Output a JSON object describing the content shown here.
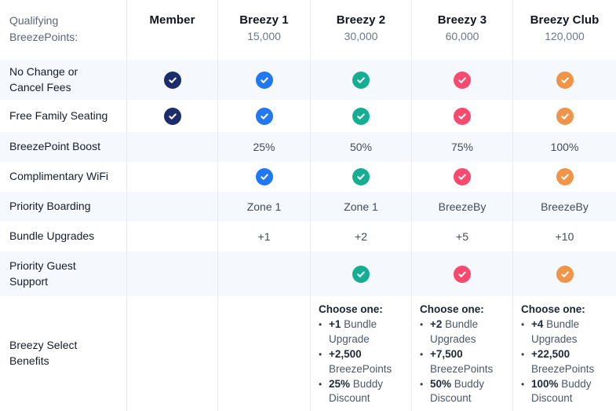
{
  "table": {
    "bullet": "•",
    "header": {
      "qualifier_label": "Qualifying BreezePoints:",
      "columns": [
        {
          "name": "Member",
          "points": ""
        },
        {
          "name": "Breezy 1",
          "points": "15,000"
        },
        {
          "name": "Breezy 2",
          "points": "30,000"
        },
        {
          "name": "Breezy 3",
          "points": "60,000"
        },
        {
          "name": "Breezy Club",
          "points": "120,000"
        }
      ]
    },
    "rows": [
      {
        "label": "No Change or Cancel Fees",
        "cells": [
          {
            "type": "check",
            "color": "navy"
          },
          {
            "type": "check",
            "color": "blue"
          },
          {
            "type": "check",
            "color": "teal"
          },
          {
            "type": "check",
            "color": "pink"
          },
          {
            "type": "check",
            "color": "orange"
          }
        ]
      },
      {
        "label": "Free Family Seating",
        "cells": [
          {
            "type": "check",
            "color": "navy"
          },
          {
            "type": "check",
            "color": "blue"
          },
          {
            "type": "check",
            "color": "teal"
          },
          {
            "type": "check",
            "color": "pink"
          },
          {
            "type": "check",
            "color": "orange"
          }
        ]
      },
      {
        "label": "BreezePoint Boost",
        "cells": [
          {
            "type": "empty"
          },
          {
            "type": "text",
            "value": "25%"
          },
          {
            "type": "text",
            "value": "50%"
          },
          {
            "type": "text",
            "value": "75%"
          },
          {
            "type": "text",
            "value": "100%"
          }
        ]
      },
      {
        "label": "Complimentary WiFi",
        "cells": [
          {
            "type": "empty"
          },
          {
            "type": "check",
            "color": "blue"
          },
          {
            "type": "check",
            "color": "teal"
          },
          {
            "type": "check",
            "color": "pink"
          },
          {
            "type": "check",
            "color": "orange"
          }
        ]
      },
      {
        "label": "Priority Boarding",
        "cells": [
          {
            "type": "empty"
          },
          {
            "type": "text",
            "value": "Zone 1"
          },
          {
            "type": "text",
            "value": "Zone 1"
          },
          {
            "type": "text",
            "value": "BreezeBy"
          },
          {
            "type": "text",
            "value": "BreezeBy"
          }
        ]
      },
      {
        "label": "Bundle Upgrades",
        "cells": [
          {
            "type": "empty"
          },
          {
            "type": "text",
            "value": "+1"
          },
          {
            "type": "text",
            "value": "+2"
          },
          {
            "type": "text",
            "value": "+5"
          },
          {
            "type": "text",
            "value": "+10"
          }
        ]
      },
      {
        "label": "Priority Guest Support",
        "cells": [
          {
            "type": "empty"
          },
          {
            "type": "empty"
          },
          {
            "type": "check",
            "color": "teal"
          },
          {
            "type": "check",
            "color": "pink"
          },
          {
            "type": "check",
            "color": "orange"
          }
        ]
      },
      {
        "label": "Breezy Select Benefits",
        "cells": [
          {
            "type": "empty"
          },
          {
            "type": "empty"
          },
          {
            "type": "list",
            "heading": "Choose one:",
            "items": [
              {
                "bold": "+1",
                "rest": " Bundle Upgrade"
              },
              {
                "bold": "+2,500",
                "rest": " BreezePoints"
              },
              {
                "bold": "25%",
                "rest": " Buddy Discount"
              }
            ]
          },
          {
            "type": "list",
            "heading": "Choose one:",
            "items": [
              {
                "bold": "+2",
                "rest": " Bundle Upgrades"
              },
              {
                "bold": "+7,500",
                "rest": " BreezePoints"
              },
              {
                "bold": "50%",
                "rest": " Buddy Discount"
              }
            ]
          },
          {
            "type": "list",
            "heading": "Choose one:",
            "items": [
              {
                "bold": "+4",
                "rest": " Bundle Upgrades"
              },
              {
                "bold": "+22,500",
                "rest": " BreezePoints"
              },
              {
                "bold": "100%",
                "rest": " Buddy Discount"
              }
            ]
          }
        ]
      }
    ]
  },
  "colors": {
    "navy": "#1D2D6B",
    "blue": "#2278F2",
    "teal": "#16AE93",
    "pink": "#F74A6E",
    "orange": "#F0944A"
  }
}
